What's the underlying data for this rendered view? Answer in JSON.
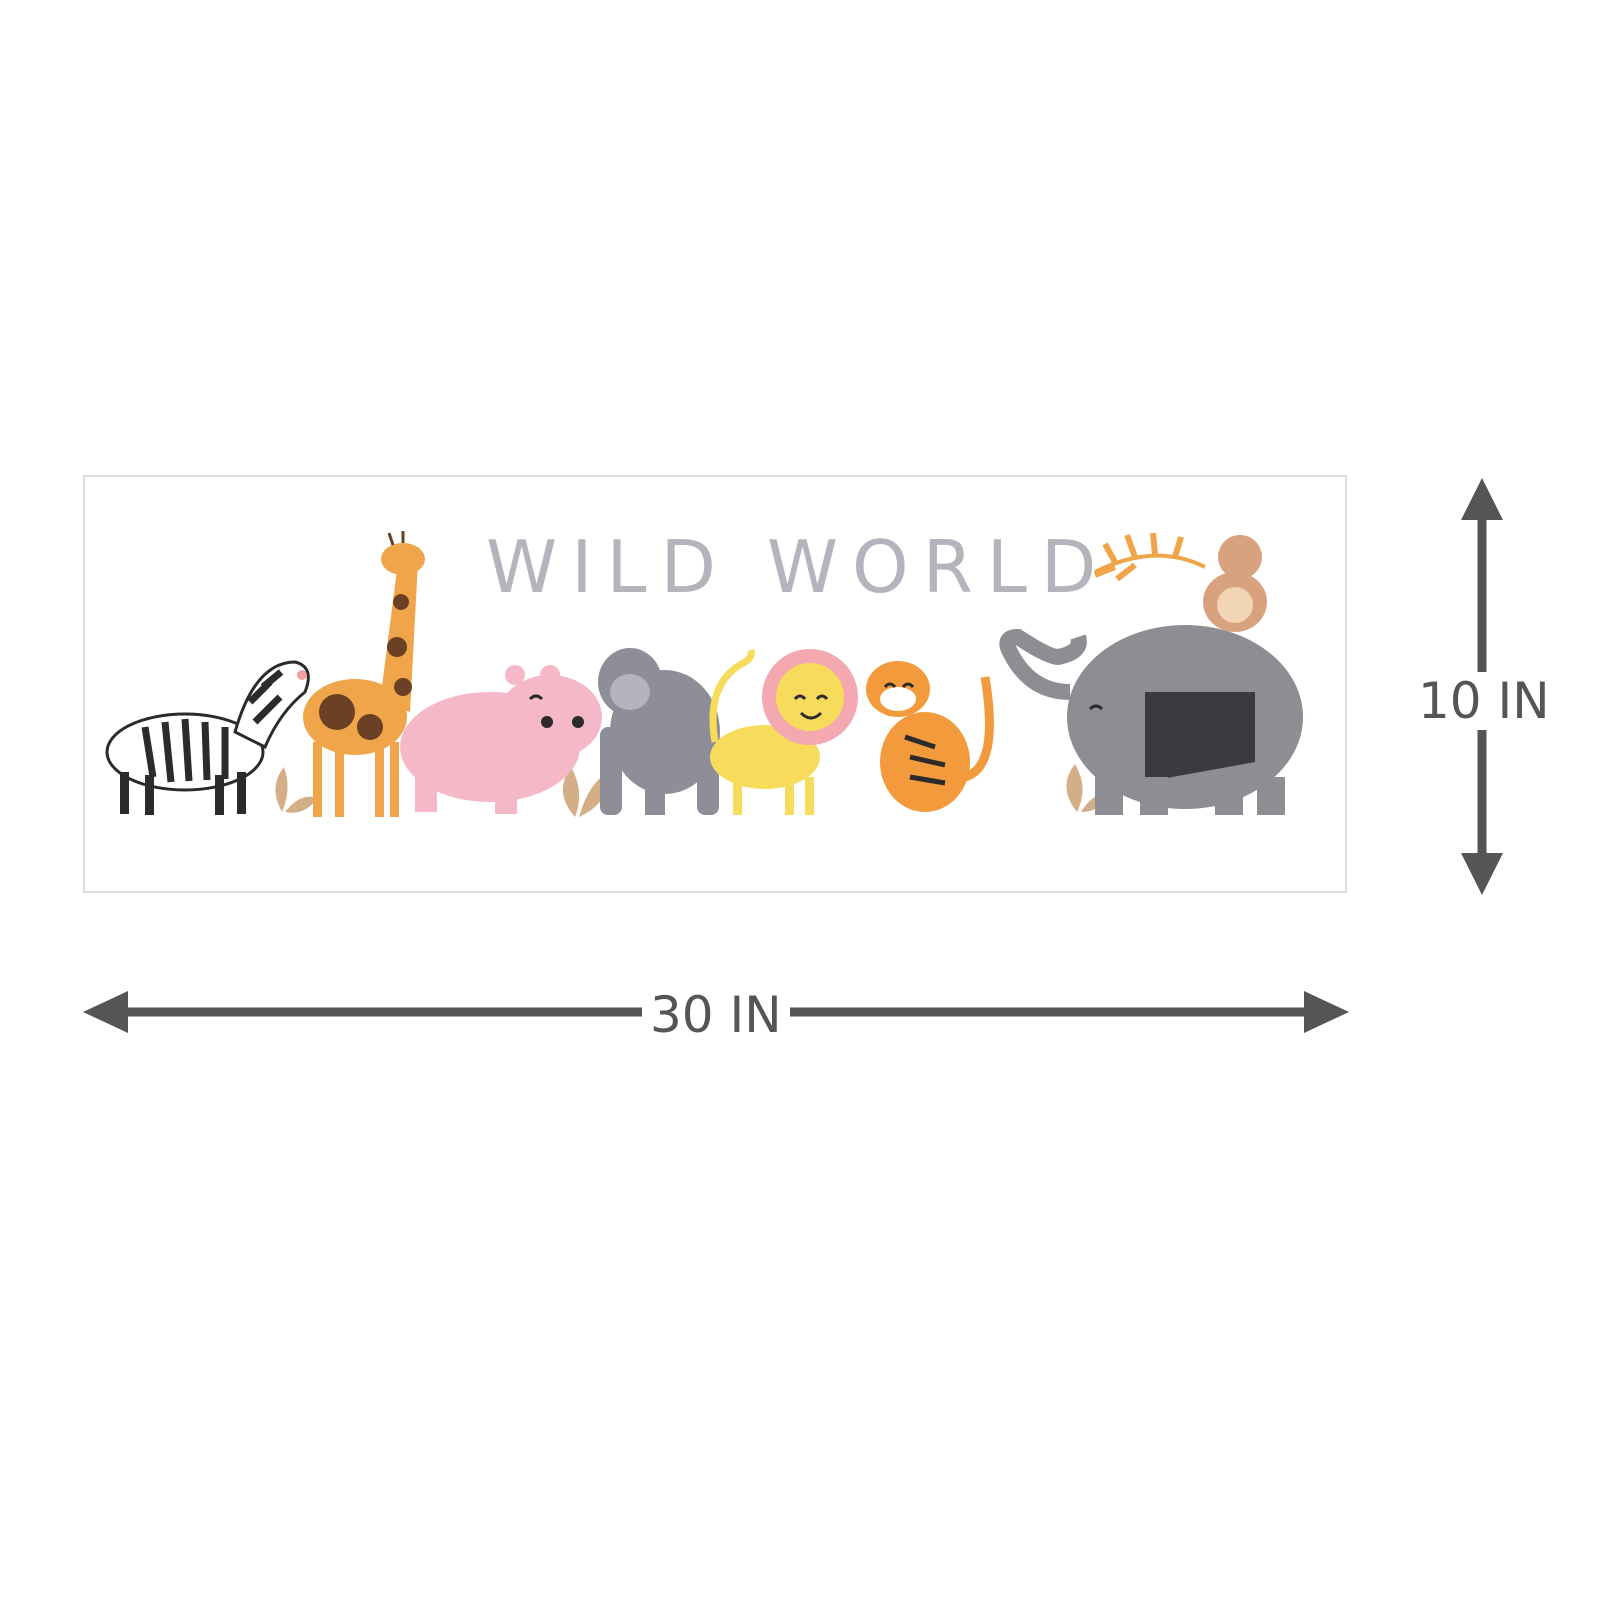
{
  "print": {
    "title": "WILD WORLD",
    "animals": [
      "zebra",
      "giraffe",
      "hippo",
      "gorilla",
      "lion",
      "tiger",
      "elephant",
      "monkey"
    ]
  },
  "dimensions": {
    "width_label": "30 IN",
    "height_label": "10 IN",
    "arrow_color": "#555555"
  },
  "colors": {
    "title_gray": "#b4b4bc",
    "zebra": "#2b2b2b",
    "giraffe": "#f0a54a",
    "giraffe_spots": "#6b4126",
    "hippo": "#f5b8c8",
    "gorilla": "#8e8e98",
    "lion": "#f7dc5c",
    "lion_mane": "#f4a8b0",
    "tiger": "#f29a3c",
    "elephant": "#8f8d94",
    "monkey": "#d9a27e",
    "plant": "#c99a6a"
  }
}
